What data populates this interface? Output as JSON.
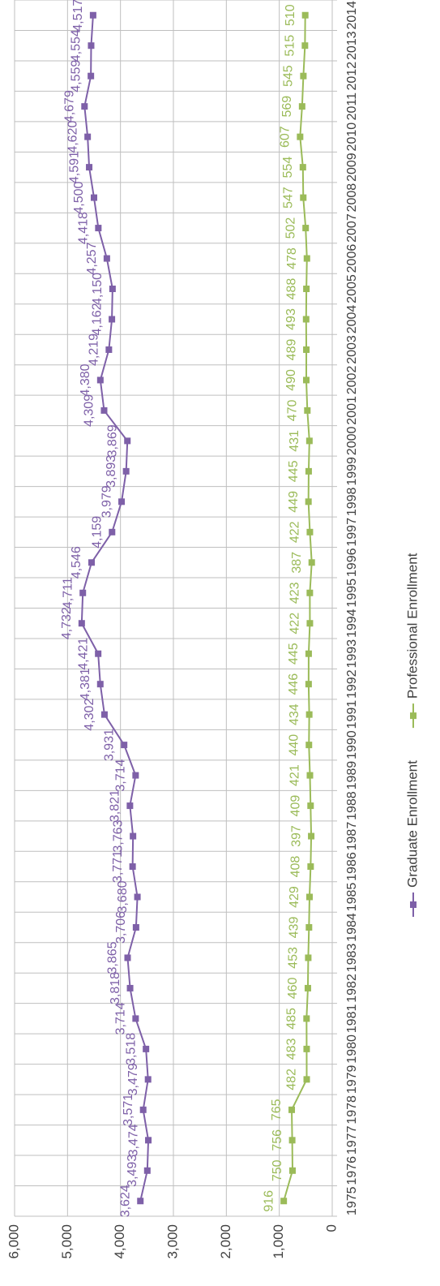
{
  "chart_data": {
    "type": "line",
    "categories": [
      "1975",
      "1976",
      "1977",
      "1978",
      "1979",
      "1980",
      "1981",
      "1982",
      "1983",
      "1984",
      "1985",
      "1986",
      "1987",
      "1988",
      "1989",
      "1990",
      "1991",
      "1992",
      "1993",
      "1994",
      "1995",
      "1996",
      "1997",
      "1998",
      "1999",
      "2000",
      "2001",
      "2002",
      "2003",
      "2004",
      "2005",
      "2006",
      "2007",
      "2008",
      "2009",
      "2010",
      "2011",
      "2012",
      "2013",
      "2014"
    ],
    "series": [
      {
        "name": "Graduate Enrollment",
        "color": "#7e60a8",
        "values": [
          3624,
          3493,
          3474,
          3571,
          3479,
          3518,
          3714,
          3818,
          3865,
          3706,
          3680,
          3771,
          3763,
          3821,
          3714,
          3931,
          4302,
          4381,
          4421,
          4732,
          4711,
          4546,
          4159,
          3979,
          3893,
          3869,
          4309,
          4380,
          4219,
          4162,
          4150,
          4257,
          4418,
          4500,
          4591,
          4620,
          4679,
          4559,
          4554,
          4517
        ],
        "value_labels": [
          "3,624",
          "3,493",
          "3,474",
          "3,571",
          "3,479",
          "3,518",
          "3,714",
          "3,818",
          "3,865",
          "3,706",
          "3,680",
          "3,771",
          "3,763",
          "3,821",
          "3,714",
          "3,931",
          "4,302",
          "4,381",
          "4,421",
          "4,732",
          "4,711",
          "4,546",
          "4,159",
          "3,979",
          "3,893",
          "3,869",
          "4,309",
          "4,380",
          "4,219",
          "4,162",
          "4,150",
          "4,257",
          "4,418",
          "4,500",
          "4,591",
          "4,620",
          "4,679",
          "4,559",
          "4,554",
          "4,517"
        ]
      },
      {
        "name": "Professional Enrollment",
        "color": "#9bbb59",
        "values": [
          916,
          750,
          756,
          765,
          482,
          483,
          485,
          460,
          453,
          439,
          429,
          408,
          397,
          409,
          421,
          440,
          434,
          446,
          445,
          422,
          423,
          387,
          422,
          449,
          445,
          431,
          470,
          490,
          489,
          493,
          488,
          478,
          502,
          547,
          554,
          607,
          569,
          545,
          515,
          510
        ]
      }
    ],
    "ylim": [
      0,
      6000
    ],
    "yticks": [
      0,
      {
        "value": 1000,
        "label": "1,000"
      },
      {
        "value": 2000,
        "label": "2,000"
      },
      {
        "value": 3000,
        "label": "3,000"
      },
      {
        "value": 4000,
        "label": "4,000"
      },
      {
        "value": 5000,
        "label": "5,000"
      },
      {
        "value": 6000,
        "label": "6,000"
      }
    ],
    "grid": true,
    "legend": "bottom"
  }
}
